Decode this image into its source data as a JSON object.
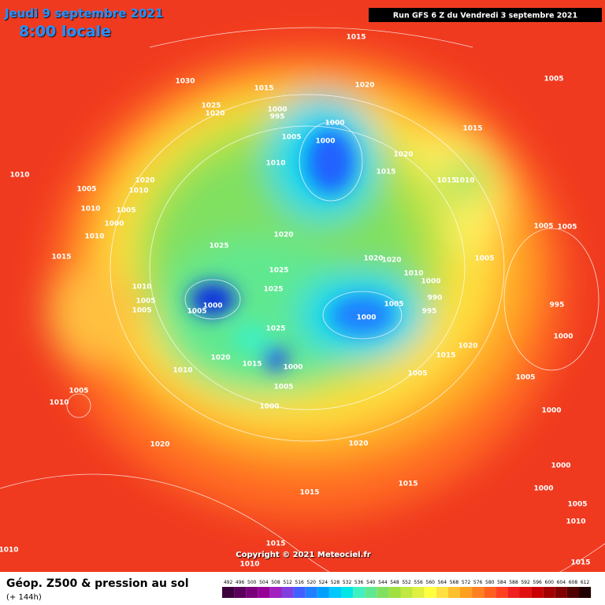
{
  "header": {
    "date": "Jeudi 9 septembre 2021",
    "time": "8:00 locale",
    "run": "Run GFS 6 Z du Vendredi 3 septembre 2021"
  },
  "footer": {
    "title": "Géop. Z500 & pression au sol",
    "lead": "(+ 144h)",
    "copyright": "Copyright © 2021 Meteociel.fr"
  },
  "legend": [
    {
      "value": 492,
      "color": "#3c003c"
    },
    {
      "value": 496,
      "color": "#5a005a"
    },
    {
      "value": 500,
      "color": "#7a007a"
    },
    {
      "value": 504,
      "color": "#960096"
    },
    {
      "value": 508,
      "color": "#a020c0"
    },
    {
      "value": 512,
      "color": "#8040e0"
    },
    {
      "value": 516,
      "color": "#4060ff"
    },
    {
      "value": 520,
      "color": "#2080ff"
    },
    {
      "value": 524,
      "color": "#00a0ff"
    },
    {
      "value": 528,
      "color": "#00c8ff"
    },
    {
      "value": 532,
      "color": "#00e6e6"
    },
    {
      "value": 536,
      "color": "#40f0c0"
    },
    {
      "value": 540,
      "color": "#60e890"
    },
    {
      "value": 544,
      "color": "#80e060"
    },
    {
      "value": 548,
      "color": "#a0e040"
    },
    {
      "value": 552,
      "color": "#c0e840"
    },
    {
      "value": 556,
      "color": "#e0f040"
    },
    {
      "value": 560,
      "color": "#ffff40"
    },
    {
      "value": 564,
      "color": "#ffe040"
    },
    {
      "value": 568,
      "color": "#ffc030"
    },
    {
      "value": 572,
      "color": "#ffa020"
    },
    {
      "value": 576,
      "color": "#ff8020"
    },
    {
      "value": 580,
      "color": "#ff6020"
    },
    {
      "value": 584,
      "color": "#ff4020"
    },
    {
      "value": 588,
      "color": "#f02020"
    },
    {
      "value": 592,
      "color": "#e01010"
    },
    {
      "value": 596,
      "color": "#c80000"
    },
    {
      "value": 600,
      "color": "#a00000"
    },
    {
      "value": 604,
      "color": "#800000"
    },
    {
      "value": 608,
      "color": "#500000"
    },
    {
      "value": 612,
      "color": "#200000"
    }
  ],
  "isobar_labels": [
    1015,
    1030,
    1015,
    1020,
    1005,
    1025,
    1020,
    1000,
    995,
    1005,
    1000,
    1000,
    1015,
    1020,
    1010,
    1015,
    1015,
    1010,
    1010,
    1020,
    1005,
    1010,
    1005,
    1010,
    1000,
    1005,
    1005,
    1010,
    1020,
    1025,
    1020,
    1020,
    1005,
    1015,
    1025,
    1010,
    1000,
    1010,
    1025,
    990,
    1005,
    1005,
    1000,
    1005,
    995,
    1005,
    995,
    1000,
    1000,
    1025,
    1020,
    1015,
    1020,
    1015,
    1000,
    1010,
    1005,
    1005,
    1005,
    1005,
    1010,
    1000,
    1000,
    1020,
    1020,
    1000,
    1015,
    1000,
    1015,
    1005,
    1010,
    1015,
    1010,
    1010,
    1015
  ]
}
